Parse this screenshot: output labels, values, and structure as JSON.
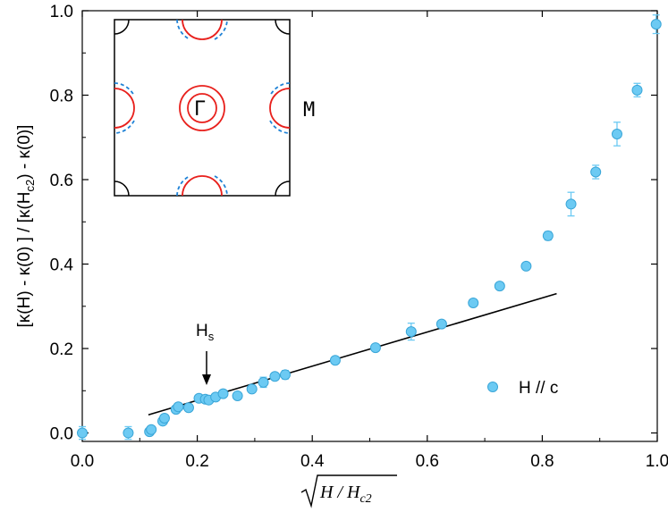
{
  "chart_data": {
    "type": "scatter",
    "xlabel": "H / H",
    "xlabel_sub": "c2",
    "ylabel_parts": [
      "[κ(H) - κ(0) ] / [κ(H",
      "c2",
      ") - κ(0)]"
    ],
    "xlim": [
      0.0,
      1.0
    ],
    "ylim": [
      -0.02,
      1.0
    ],
    "x_ticks": [
      0.0,
      0.2,
      0.4,
      0.6,
      0.8,
      1.0
    ],
    "x_tick_labels": [
      "0.0",
      "0.2",
      "0.4",
      "0.6",
      "0.8",
      "1.0"
    ],
    "y_ticks": [
      0.0,
      0.2,
      0.4,
      0.6,
      0.8,
      1.0
    ],
    "y_tick_labels": [
      "0.0",
      "0.2",
      "0.4",
      "0.6",
      "0.8",
      "1.0"
    ],
    "colors": {
      "marker": "#6ccaf3",
      "marker_edge": "#3aa6d8",
      "line": "#000000",
      "inset_red": "#e8201c",
      "inset_blue": "#1f82d6"
    },
    "series": [
      {
        "name": "H // c",
        "points": [
          {
            "x": 0.0,
            "y": 0.0,
            "err": 0.015
          },
          {
            "x": 0.08,
            "y": 0.0,
            "err": 0.015
          },
          {
            "x": 0.117,
            "y": 0.003,
            "err": 0.005
          },
          {
            "x": 0.12,
            "y": 0.008,
            "err": 0.005
          },
          {
            "x": 0.14,
            "y": 0.028,
            "err": 0.006
          },
          {
            "x": 0.143,
            "y": 0.035,
            "err": 0.006
          },
          {
            "x": 0.163,
            "y": 0.056,
            "err": 0.006
          },
          {
            "x": 0.167,
            "y": 0.062,
            "err": 0.008
          },
          {
            "x": 0.185,
            "y": 0.06,
            "err": 0.006
          },
          {
            "x": 0.203,
            "y": 0.082,
            "err": 0.007
          },
          {
            "x": 0.214,
            "y": 0.08,
            "err": 0.006
          },
          {
            "x": 0.22,
            "y": 0.078,
            "err": 0.006
          },
          {
            "x": 0.232,
            "y": 0.085,
            "err": 0.008
          },
          {
            "x": 0.245,
            "y": 0.093,
            "err": 0.006
          },
          {
            "x": 0.27,
            "y": 0.088,
            "err": 0.008
          },
          {
            "x": 0.295,
            "y": 0.104,
            "err": 0.006
          },
          {
            "x": 0.315,
            "y": 0.12,
            "err": 0.012
          },
          {
            "x": 0.335,
            "y": 0.134,
            "err": 0.008
          },
          {
            "x": 0.353,
            "y": 0.138,
            "err": 0.01
          },
          {
            "x": 0.44,
            "y": 0.172,
            "err": 0.008
          },
          {
            "x": 0.51,
            "y": 0.202,
            "err": 0.008
          },
          {
            "x": 0.572,
            "y": 0.24,
            "err": 0.02
          },
          {
            "x": 0.625,
            "y": 0.258,
            "err": 0.006
          },
          {
            "x": 0.68,
            "y": 0.308,
            "err": 0.008
          },
          {
            "x": 0.726,
            "y": 0.348,
            "err": 0.006
          },
          {
            "x": 0.772,
            "y": 0.395,
            "err": 0.006
          },
          {
            "x": 0.81,
            "y": 0.467,
            "err": 0.01
          },
          {
            "x": 0.85,
            "y": 0.542,
            "err": 0.028
          },
          {
            "x": 0.893,
            "y": 0.618,
            "err": 0.016
          },
          {
            "x": 0.93,
            "y": 0.708,
            "err": 0.028
          },
          {
            "x": 0.965,
            "y": 0.812,
            "err": 0.016
          },
          {
            "x": 0.998,
            "y": 0.968,
            "err": 0.022
          }
        ]
      }
    ],
    "fit_line": {
      "x": [
        0.115,
        0.825
      ],
      "y": [
        0.043,
        0.33
      ]
    },
    "annotation": {
      "label": "H",
      "label_sub": "s",
      "x": 0.215,
      "y": 0.08
    },
    "legend": {
      "label": "H // c",
      "position": "lower-right"
    },
    "inset": {
      "gamma_label": "Γ",
      "m_label": "M"
    }
  }
}
